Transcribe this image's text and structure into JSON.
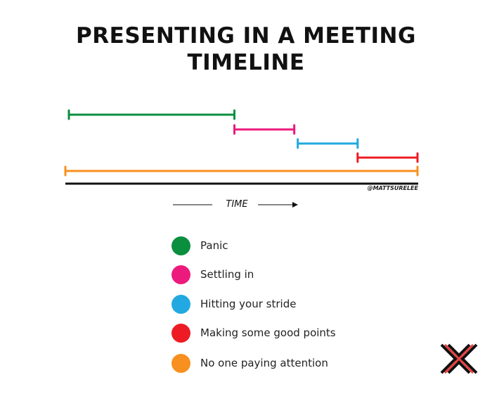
{
  "chart_data": {
    "type": "bar",
    "subtype": "timeline",
    "title": "PRESENTING IN A MEETING TIMELINE",
    "title_lines": [
      "PRESENTING IN A MEETING",
      "TIMELINE"
    ],
    "xlabel": "TIME",
    "credit": "@MATTSURELEE",
    "xlim": [
      0,
      1
    ],
    "grid": false,
    "legend_position": "bottom",
    "series": [
      {
        "name": "Panic",
        "start": 0.01,
        "end": 0.48,
        "color": "#0a8f3f"
      },
      {
        "name": "Settling in",
        "start": 0.48,
        "end": 0.65,
        "color": "#ec1a7d"
      },
      {
        "name": "Hitting your stride",
        "start": 0.66,
        "end": 0.83,
        "color": "#22a9e1"
      },
      {
        "name": "Making some good points",
        "start": 0.83,
        "end": 1.0,
        "color": "#ed1c24"
      },
      {
        "name": "No one paying attention",
        "start": 0.0,
        "end": 1.0,
        "color": "#f7901e"
      }
    ]
  },
  "logo": {
    "name": "x-logo",
    "colors": [
      "#111111",
      "#e8403f"
    ]
  }
}
